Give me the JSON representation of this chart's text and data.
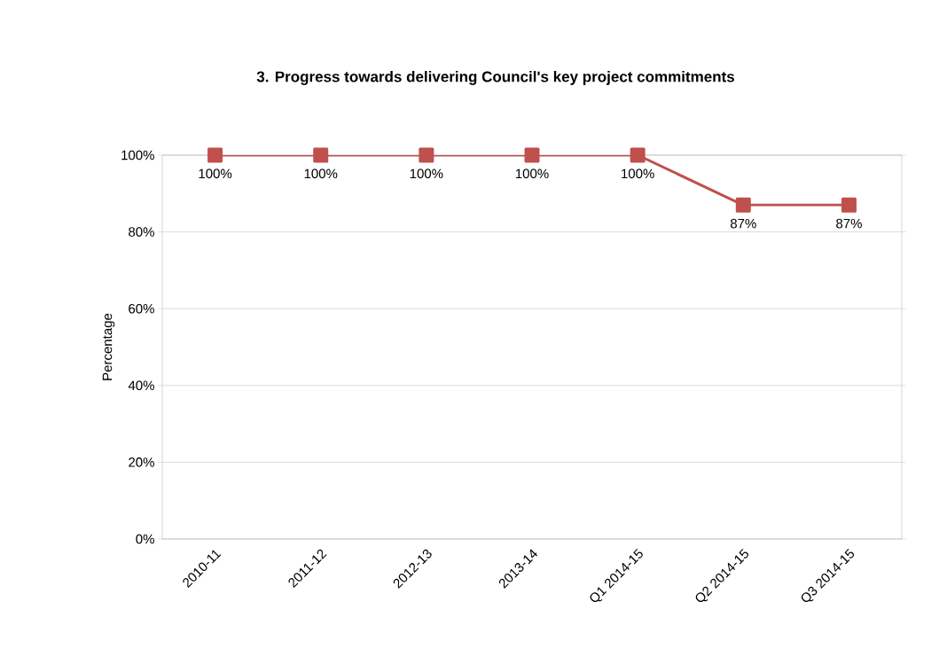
{
  "chart_data": {
    "type": "line",
    "title": "3. Progress towards delivering Council's key project commitments",
    "ylabel": "Percentage",
    "categories": [
      "2010-11",
      "2011-12",
      "2012-13",
      "2013-14",
      "Q1 2014-15",
      "Q2 2014-15",
      "Q3 2014-15"
    ],
    "series": [
      {
        "color": "#c0504d",
        "values": [
          100,
          100,
          100,
          100,
          100,
          87,
          87
        ],
        "value_labels": [
          "100%",
          "100%",
          "100%",
          "100%",
          "100%",
          "87%",
          "87%"
        ]
      }
    ],
    "ylim": [
      0,
      100
    ],
    "yticks": [
      {
        "value": 0,
        "label": "0%"
      },
      {
        "value": 20,
        "label": "20%"
      },
      {
        "value": 40,
        "label": "40%"
      },
      {
        "value": 60,
        "label": "60%"
      },
      {
        "value": 80,
        "label": "80%"
      },
      {
        "value": 100,
        "label": "100%"
      }
    ],
    "grid": "y",
    "marker": "square",
    "line_style": "solid"
  }
}
